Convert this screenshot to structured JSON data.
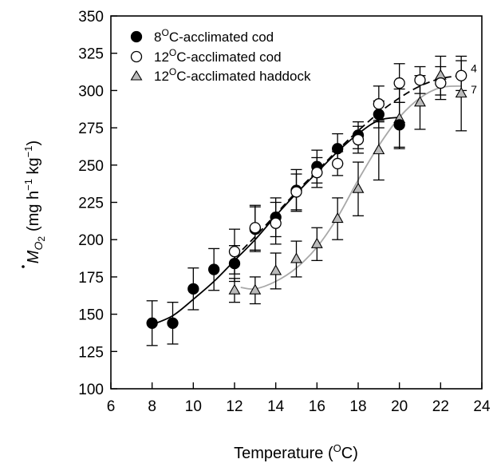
{
  "chart_data": {
    "type": "scatter",
    "xlabel": "Temperature (",
    "xlabel_sup": "O",
    "xlabel_end": "C)",
    "ylabel_symbol": "M",
    "ylabel_subscript": "O",
    "ylabel_subscript2": "2",
    "ylabel_units": "(mg h",
    "ylabel_units_sup1": "−1",
    "ylabel_units_mid": " kg",
    "ylabel_units_sup2": "−1",
    "ylabel_units_end": ")",
    "xlim": [
      6,
      24
    ],
    "ylim": [
      100,
      350
    ],
    "xticks": [
      6,
      8,
      10,
      12,
      14,
      16,
      18,
      20,
      22,
      24
    ],
    "yticks": [
      100,
      125,
      150,
      175,
      200,
      225,
      250,
      275,
      300,
      325,
      350
    ],
    "grid": false,
    "legend_position": "top-left",
    "series": [
      {
        "name": "8OC-acclimated cod",
        "legend_prefix": "8",
        "legend_sup": "O",
        "legend_suffix": "C-acclimated cod",
        "marker": "filled-circle",
        "color": "#000000",
        "x": [
          8,
          9,
          10,
          11,
          12,
          13,
          14,
          15,
          16,
          17,
          18,
          19,
          20
        ],
        "y": [
          144,
          144,
          167,
          180,
          184,
          207,
          215,
          233,
          249,
          261,
          270,
          284,
          277
        ],
        "err": [
          15,
          14,
          14,
          14,
          12,
          15,
          13,
          14,
          11,
          10,
          9,
          9,
          15
        ],
        "fit": [
          [
            8,
            143
          ],
          [
            9,
            149
          ],
          [
            10,
            160
          ],
          [
            11,
            172
          ],
          [
            12,
            186
          ],
          [
            13,
            200
          ],
          [
            14,
            216
          ],
          [
            15,
            231
          ],
          [
            16,
            245
          ],
          [
            17,
            259
          ],
          [
            18,
            271
          ],
          [
            19,
            280
          ],
          [
            20,
            282
          ]
        ],
        "fit_style": "solid",
        "fit_color": "#000000"
      },
      {
        "name": "12OC-acclimated cod",
        "legend_prefix": "12",
        "legend_sup": "O",
        "legend_suffix": "C-acclimated cod",
        "marker": "open-circle",
        "color": "#000000",
        "x": [
          12,
          13,
          14,
          15,
          16,
          17,
          18,
          19,
          20,
          21,
          22,
          23
        ],
        "y": [
          192,
          208,
          211,
          232,
          245,
          251,
          267,
          291,
          305,
          307,
          305,
          310
        ],
        "err": [
          15,
          15,
          14,
          12,
          10,
          8,
          9,
          12,
          13,
          9,
          11,
          10
        ],
        "fit": [
          [
            12,
            188
          ],
          [
            13,
            202
          ],
          [
            14,
            217
          ],
          [
            15,
            232
          ],
          [
            16,
            246
          ],
          [
            17,
            260
          ],
          [
            18,
            273
          ],
          [
            19,
            285
          ],
          [
            20,
            295
          ],
          [
            21,
            303
          ],
          [
            22,
            308
          ],
          [
            23,
            310
          ]
        ],
        "fit_style": "dashed",
        "fit_color": "#000000",
        "n_label": "4"
      },
      {
        "name": "12OC-acclimated haddock",
        "legend_prefix": "12",
        "legend_sup": "O",
        "legend_suffix": "C-acclimated haddock",
        "marker": "open-triangle-gray",
        "color": "#aaaaaa",
        "x": [
          12,
          13,
          14,
          15,
          16,
          17,
          18,
          19,
          20,
          21,
          22,
          23
        ],
        "y": [
          166,
          166,
          179,
          187,
          197,
          214,
          234,
          260,
          281,
          292,
          310,
          298
        ],
        "err": [
          8,
          9,
          12,
          12,
          11,
          14,
          18,
          20,
          20,
          18,
          13,
          25
        ],
        "fit": [
          [
            12.3,
            168
          ],
          [
            13,
            167
          ],
          [
            14,
            172
          ],
          [
            15,
            181
          ],
          [
            16,
            195
          ],
          [
            17,
            215
          ],
          [
            18,
            240
          ],
          [
            19,
            263
          ],
          [
            20,
            282
          ],
          [
            21,
            295
          ],
          [
            22,
            302
          ],
          [
            23,
            303
          ]
        ],
        "fit_style": "solid",
        "fit_color": "#a8a8a8",
        "n_label": "7"
      }
    ]
  }
}
